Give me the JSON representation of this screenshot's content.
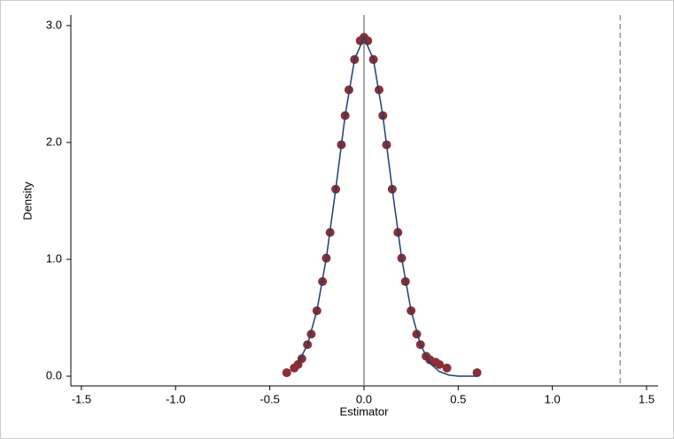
{
  "chart_data": {
    "type": "scatter",
    "x_label": "Estimator",
    "y_label": "Density",
    "xlim": [
      -1.556,
      1.561
    ],
    "ylim": [
      -0.083,
      3.09
    ],
    "xticks": [
      -1.5,
      {
        "value": -1.0,
        "label": "-1.0"
      },
      -0.5,
      {
        "value": 0.0,
        "label": "0.0"
      },
      0.5,
      {
        "value": 1.0,
        "label": "1.0"
      },
      1.5
    ],
    "yticks": [
      {
        "value": 0.0,
        "label": "0.0"
      },
      {
        "value": 1.0,
        "label": "1.0"
      },
      {
        "value": 2.0,
        "label": "2.0"
      },
      {
        "value": 3.0,
        "label": "3.0"
      }
    ],
    "points": {
      "color": "#8b2e35",
      "x": [
        -0.41,
        -0.37,
        -0.35,
        -0.33,
        -0.3,
        -0.28,
        -0.25,
        -0.22,
        -0.2,
        -0.18,
        -0.15,
        -0.12,
        -0.1,
        -0.08,
        -0.05,
        -0.02,
        0,
        0.02,
        0.05,
        0.08,
        0.1,
        0.12,
        0.15,
        0.18,
        0.2,
        0.22,
        0.25,
        0.28,
        0.3,
        0.33,
        0.35,
        0.38,
        0.4,
        0.44,
        0.6
      ],
      "values": [
        0.03,
        0.07,
        0.1,
        0.15,
        0.27,
        0.36,
        0.56,
        0.81,
        1.01,
        1.23,
        1.6,
        1.98,
        2.23,
        2.45,
        2.71,
        2.87,
        2.9,
        2.87,
        2.71,
        2.45,
        2.23,
        1.98,
        1.6,
        1.23,
        1.01,
        0.81,
        0.56,
        0.36,
        0.27,
        0.17,
        0.14,
        0.12,
        0.1,
        0.07,
        0.03
      ]
    },
    "line": {
      "color": "#1f3f6e",
      "x": [
        -0.35,
        -0.3,
        -0.25,
        -0.2,
        -0.15,
        -0.1,
        -0.05,
        0,
        0.05,
        0.1,
        0.15,
        0.2,
        0.25,
        0.3,
        0.35,
        0.4,
        0.45,
        0.5,
        0.55,
        0.6
      ],
      "values": [
        0.11,
        0.27,
        0.56,
        1.01,
        1.6,
        2.23,
        2.71,
        2.9,
        2.71,
        2.23,
        1.6,
        1.01,
        0.56,
        0.27,
        0.11,
        0.04,
        0.01,
        0,
        0,
        0
      ]
    },
    "reference_lines": [
      {
        "x": 0,
        "style": "solid",
        "color": "#888888"
      },
      {
        "x": 1.36,
        "style": "dashed",
        "color": "#999999"
      }
    ]
  }
}
